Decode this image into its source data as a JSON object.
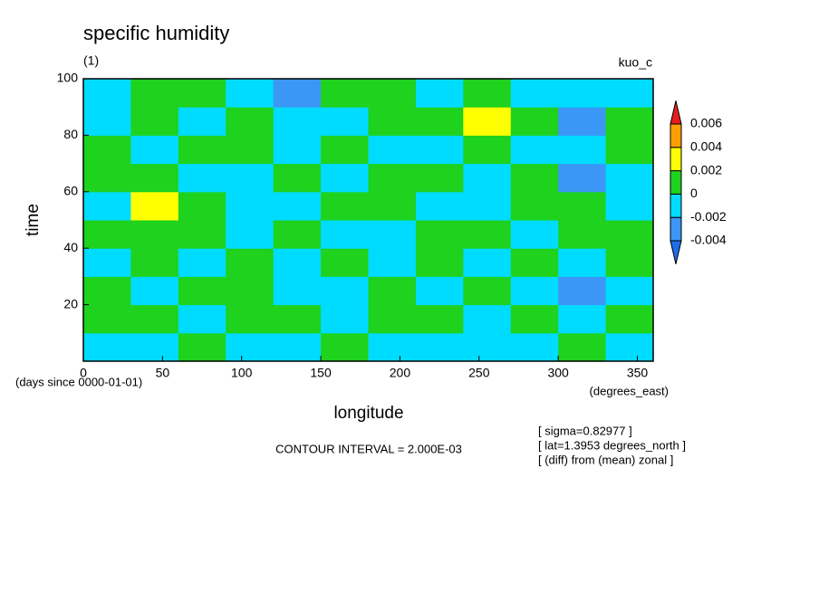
{
  "chart_data": {
    "type": "contour",
    "title": "specific humidity",
    "subtitle": "(1)",
    "label_right": "kuo_c",
    "xlabel": "longitude",
    "ylabel": "time",
    "y_units": "(days since 0000-01-01)",
    "x_units": "(degrees_east)",
    "contour_interval": "CONTOUR INTERVAL = 2.000E-03",
    "notes": [
      "[ sigma=0.82977 ]",
      "[ lat=1.3953 degrees_north ]",
      "[ (diff) from (mean) zonal ]"
    ],
    "xlim": [
      0,
      360
    ],
    "xticks": [
      0,
      50,
      100,
      150,
      200,
      250,
      300,
      350
    ],
    "ylim": [
      0,
      100
    ],
    "yticks": [
      20,
      40,
      60,
      80,
      100
    ],
    "levels": [
      -0.004,
      -0.002,
      0,
      0.002,
      0.004,
      0.006
    ],
    "colors": [
      "#1e6eeb",
      "#3c96f5",
      "#00dcff",
      "#1ed21e",
      "#ffff00",
      "#ffa000",
      "#e61e1e"
    ],
    "x": [
      15,
      45,
      75,
      105,
      135,
      165,
      195,
      225,
      255,
      285,
      315,
      345
    ],
    "y": [
      5,
      15,
      25,
      35,
      45,
      55,
      65,
      75,
      85,
      95
    ],
    "z": [
      [
        -0.001,
        -0.001,
        0.001,
        -0.001,
        -0.001,
        0.001,
        -0.001,
        -0.001,
        -0.001,
        -0.001,
        0.001,
        -0.001
      ],
      [
        0.001,
        0.001,
        -0.001,
        0.001,
        0.001,
        -0.001,
        0.001,
        0.001,
        -0.001,
        0.001,
        -0.001,
        0.001
      ],
      [
        0.001,
        -0.001,
        0.001,
        0.001,
        -0.001,
        -0.001,
        0.001,
        -0.001,
        0.001,
        -0.001,
        -0.003,
        -0.001
      ],
      [
        -0.001,
        0.001,
        -0.001,
        0.001,
        -0.001,
        0.001,
        -0.001,
        0.001,
        -0.001,
        0.001,
        -0.001,
        0.001
      ],
      [
        0.001,
        0.001,
        0.001,
        -0.001,
        0.001,
        -0.001,
        -0.001,
        0.001,
        0.001,
        -0.001,
        0.001,
        0.001
      ],
      [
        -0.001,
        0.003,
        0.001,
        -0.001,
        -0.001,
        0.001,
        0.001,
        -0.001,
        -0.001,
        0.001,
        0.001,
        -0.001
      ],
      [
        0.001,
        0.001,
        -0.001,
        -0.001,
        0.001,
        -0.001,
        0.001,
        0.001,
        -0.001,
        0.001,
        -0.003,
        -0.001
      ],
      [
        0.001,
        -0.001,
        0.001,
        0.001,
        -0.001,
        0.001,
        -0.001,
        -0.001,
        0.001,
        -0.001,
        -0.001,
        0.001
      ],
      [
        -0.001,
        0.001,
        -0.001,
        0.001,
        -0.001,
        -0.001,
        0.001,
        0.001,
        0.003,
        0.001,
        -0.003,
        0.001
      ],
      [
        -0.001,
        0.001,
        0.001,
        -0.001,
        -0.003,
        0.001,
        0.001,
        -0.001,
        0.001,
        -0.001,
        -0.001,
        -0.001
      ]
    ]
  }
}
